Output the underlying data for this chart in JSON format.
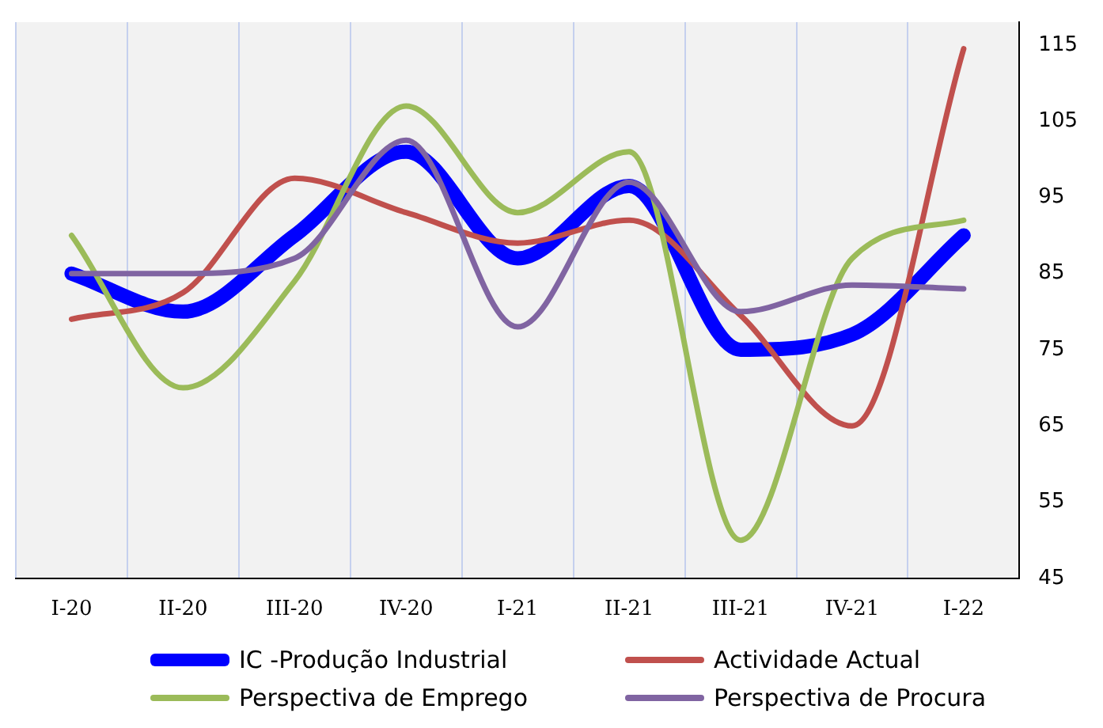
{
  "chart_data": {
    "type": "line",
    "categories": [
      "I-20",
      "II-20",
      "III-20",
      "IV-20",
      "I-21",
      "II-21",
      "III-21",
      "IV-21",
      "I-22"
    ],
    "series": [
      {
        "name": "IC -Produção Industrial",
        "color": "#0000ff",
        "values": [
          85,
          80,
          90,
          101,
          87,
          96.5,
          75,
          77,
          90
        ]
      },
      {
        "name": "Actividade Actual",
        "color": "#c0504d",
        "values": [
          79,
          82.5,
          97.5,
          93,
          89,
          92,
          79.5,
          65,
          114.5
        ]
      },
      {
        "name": "Perspectiva de Emprego",
        "color": "#9bbb59",
        "values": [
          90,
          70,
          84,
          107,
          93,
          101,
          50,
          87,
          92
        ]
      },
      {
        "name": "Perspectiva de Procura",
        "color": "#8064a2",
        "values": [
          85,
          85,
          87,
          102.5,
          78,
          97,
          80,
          83.5,
          83
        ]
      }
    ],
    "ylim": [
      45,
      118
    ],
    "yticks": [
      45,
      55,
      65,
      75,
      85,
      95,
      105,
      115
    ],
    "grid": "x",
    "legend": "bottom",
    "marker": "none",
    "line_style": "solid"
  }
}
